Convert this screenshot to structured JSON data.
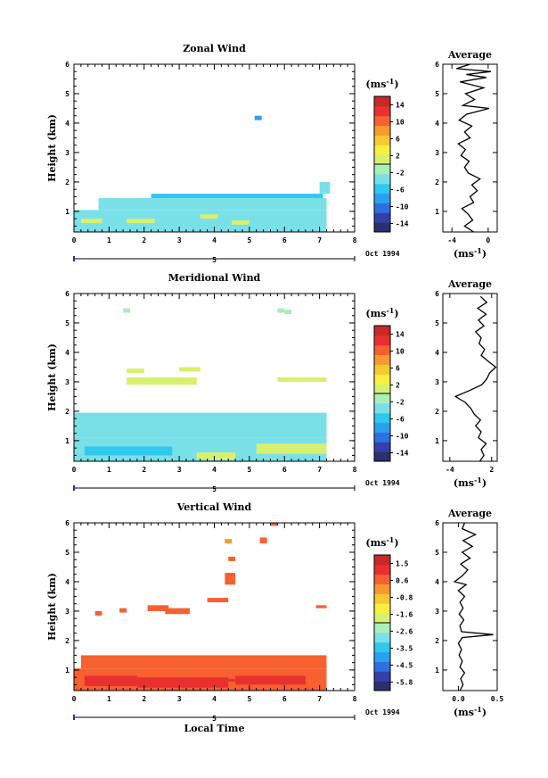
{
  "chart_data": [
    {
      "type": "heatmap",
      "title": "Zonal Wind",
      "ylabel": "Height (km)",
      "xlim": [
        0,
        8
      ],
      "ylim": [
        0.3,
        6
      ],
      "xticks": [
        "0",
        "1",
        "2",
        "3",
        "4",
        "5",
        "6",
        "7",
        "8"
      ],
      "yticks": [
        "1",
        "2",
        "3",
        "4",
        "5",
        "6"
      ],
      "date_label": "Oct 1994",
      "day_label": "5",
      "colorbar": {
        "unit_label": "(ms",
        "unit_exp": "-1",
        "unit_close": ")",
        "ticks": [
          "14",
          "10",
          "6",
          "2",
          "-2",
          "-6",
          "-10",
          "-14"
        ],
        "range": [
          -16,
          16
        ],
        "colors": [
          "#2a2f6e",
          "#3340a8",
          "#2f6fe0",
          "#2aa0f0",
          "#30c8ec",
          "#7ae0e8",
          "#a8f0b8",
          "#d8f070",
          "#f8f040",
          "#f8c830",
          "#f89830",
          "#f86030",
          "#e83030",
          "#c82828"
        ]
      },
      "regions": [
        {
          "x0": 0.0,
          "x1": 7.2,
          "y0": 0.3,
          "y1": 1.05,
          "value": -3
        },
        {
          "x0": 0.7,
          "x1": 7.2,
          "y0": 1.05,
          "y1": 1.45,
          "value": -4
        },
        {
          "x0": 2.2,
          "x1": 7.1,
          "y0": 1.45,
          "y1": 1.6,
          "value": -5
        },
        {
          "x0": 7.0,
          "x1": 7.3,
          "y0": 1.6,
          "y1": 2.0,
          "value": -4
        },
        {
          "x0": 5.15,
          "x1": 5.35,
          "y0": 4.1,
          "y1": 4.25,
          "value": -8
        },
        {
          "x0": 0.2,
          "x1": 0.8,
          "y0": 0.6,
          "y1": 0.75,
          "value": 1
        },
        {
          "x0": 1.5,
          "x1": 2.3,
          "y0": 0.6,
          "y1": 0.75,
          "value": 0
        },
        {
          "x0": 3.6,
          "x1": 4.1,
          "y0": 0.75,
          "y1": 0.9,
          "value": 0
        },
        {
          "x0": 4.5,
          "x1": 5.0,
          "y0": 0.55,
          "y1": 0.7,
          "value": 1
        }
      ],
      "average": {
        "title": "Average",
        "xlim": [
          -5,
          1
        ],
        "xticks": [
          "-4",
          "0"
        ],
        "xlabel_unit": "(ms",
        "xlabel_exp": "-1",
        "xlabel_close": ")",
        "profile": [
          [
            0.3,
            -1.6
          ],
          [
            0.5,
            -2.6
          ],
          [
            0.7,
            -1.7
          ],
          [
            0.9,
            -2.2
          ],
          [
            1.1,
            -2.9
          ],
          [
            1.3,
            -1.6
          ],
          [
            1.5,
            -2.0
          ],
          [
            1.7,
            -1.2
          ],
          [
            1.9,
            -1.8
          ],
          [
            2.1,
            -0.9
          ],
          [
            2.3,
            -2.2
          ],
          [
            2.5,
            -2.6
          ],
          [
            2.7,
            -2.1
          ],
          [
            2.9,
            -3.0
          ],
          [
            3.1,
            -2.5
          ],
          [
            3.3,
            -3.3
          ],
          [
            3.5,
            -2.0
          ],
          [
            3.7,
            -2.6
          ],
          [
            3.9,
            -1.8
          ],
          [
            4.1,
            -3.2
          ],
          [
            4.3,
            -2.4
          ],
          [
            4.5,
            0.1
          ],
          [
            4.6,
            -2.8
          ],
          [
            4.8,
            -1.5
          ],
          [
            5.0,
            -2.5
          ],
          [
            5.2,
            -0.5
          ],
          [
            5.4,
            -3.1
          ],
          [
            5.55,
            -0.2
          ],
          [
            5.65,
            -2.4
          ],
          [
            5.75,
            0.3
          ],
          [
            5.85,
            -3.5
          ],
          [
            6.0,
            -2.0
          ]
        ]
      }
    },
    {
      "type": "heatmap",
      "title": "Meridional Wind",
      "ylabel": "Height (km)",
      "xlim": [
        0,
        8
      ],
      "ylim": [
        0.3,
        6
      ],
      "xticks": [
        "0",
        "1",
        "2",
        "3",
        "4",
        "5",
        "6",
        "7",
        "8"
      ],
      "yticks": [
        "1",
        "2",
        "3",
        "4",
        "5",
        "6"
      ],
      "date_label": "Oct 1994",
      "day_label": "5",
      "colorbar": {
        "unit_label": "(ms",
        "unit_exp": "-1",
        "unit_close": ")",
        "ticks": [
          "14",
          "10",
          "6",
          "2",
          "-2",
          "-6",
          "-10",
          "-14"
        ],
        "range": [
          -16,
          16
        ],
        "colors": [
          "#2a2f6e",
          "#3340a8",
          "#2f6fe0",
          "#2aa0f0",
          "#30c8ec",
          "#7ae0e8",
          "#a8f0b8",
          "#d8f070",
          "#f8f040",
          "#f8c830",
          "#f89830",
          "#f86030",
          "#e83030",
          "#c82828"
        ]
      },
      "regions": [
        {
          "x0": 0.0,
          "x1": 7.2,
          "y0": 0.3,
          "y1": 1.1,
          "value": -3
        },
        {
          "x0": 0.0,
          "x1": 7.2,
          "y0": 1.1,
          "y1": 1.95,
          "value": -4
        },
        {
          "x0": 0.3,
          "x1": 2.8,
          "y0": 0.5,
          "y1": 0.8,
          "value": -6
        },
        {
          "x0": 5.2,
          "x1": 7.2,
          "y0": 0.55,
          "y1": 0.9,
          "value": 1
        },
        {
          "x0": 3.5,
          "x1": 4.6,
          "y0": 0.35,
          "y1": 0.6,
          "value": 0
        },
        {
          "x0": 1.5,
          "x1": 3.5,
          "y0": 2.9,
          "y1": 3.15,
          "value": 0
        },
        {
          "x0": 1.5,
          "x1": 2.0,
          "y0": 3.3,
          "y1": 3.45,
          "value": 1
        },
        {
          "x0": 3.0,
          "x1": 3.6,
          "y0": 3.35,
          "y1": 3.5,
          "value": 1
        },
        {
          "x0": 5.8,
          "x1": 7.2,
          "y0": 3.0,
          "y1": 3.15,
          "value": 0
        },
        {
          "x0": 1.4,
          "x1": 1.6,
          "y0": 5.35,
          "y1": 5.5,
          "value": -1
        },
        {
          "x0": 5.8,
          "x1": 6.0,
          "y0": 5.35,
          "y1": 5.5,
          "value": -1
        },
        {
          "x0": 6.0,
          "x1": 6.2,
          "y0": 5.3,
          "y1": 5.45,
          "value": -2
        }
      ],
      "average": {
        "title": "Average",
        "xlim": [
          -5,
          2.8
        ],
        "xticks": [
          "-4",
          "2"
        ],
        "xlabel_unit": "(ms",
        "xlabel_exp": "-1",
        "xlabel_close": ")",
        "profile": [
          [
            0.3,
            0.3
          ],
          [
            0.5,
            0.9
          ],
          [
            0.7,
            0.5
          ],
          [
            0.9,
            1.2
          ],
          [
            1.1,
            0.1
          ],
          [
            1.3,
            0.5
          ],
          [
            1.5,
            -0.3
          ],
          [
            1.7,
            0.4
          ],
          [
            1.9,
            -0.5
          ],
          [
            2.1,
            -1.0
          ],
          [
            2.3,
            -1.8
          ],
          [
            2.5,
            -3.2
          ],
          [
            2.7,
            -1.2
          ],
          [
            2.9,
            0.6
          ],
          [
            3.1,
            1.3
          ],
          [
            3.3,
            1.7
          ],
          [
            3.5,
            2.6
          ],
          [
            3.7,
            1.5
          ],
          [
            3.9,
            0.5
          ],
          [
            4.1,
            1.0
          ],
          [
            4.3,
            0.2
          ],
          [
            4.5,
            0.5
          ],
          [
            4.7,
            -0.3
          ],
          [
            4.9,
            0.9
          ],
          [
            5.1,
            0.1
          ],
          [
            5.3,
            1.2
          ],
          [
            5.5,
            0.0
          ],
          [
            5.7,
            1.3
          ],
          [
            5.9,
            0.4
          ]
        ]
      }
    },
    {
      "type": "heatmap",
      "title": "Vertical Wind",
      "ylabel": "Height (km)",
      "xlabel": "Local Time",
      "xlim": [
        0,
        8
      ],
      "ylim": [
        0.3,
        6
      ],
      "xticks": [
        "0",
        "1",
        "2",
        "3",
        "4",
        "5",
        "6",
        "7",
        "8"
      ],
      "yticks": [
        "1",
        "2",
        "3",
        "4",
        "5",
        "6"
      ],
      "date_label": "Oct 1994",
      "day_label": "5",
      "colorbar": {
        "unit_label": "(ms",
        "unit_exp": "-1",
        "unit_close": ")",
        "ticks": [
          "1.5",
          "0.6",
          "-0.8",
          "-1.6",
          "-2.6",
          "-3.5",
          "-4.5",
          "-5.8"
        ],
        "range": [
          -6.5,
          2.0
        ],
        "colors": [
          "#2a2f6e",
          "#3340a8",
          "#2f6fe0",
          "#2aa0f0",
          "#30c8ec",
          "#7ae0e8",
          "#a8f0b8",
          "#d8f070",
          "#f8f040",
          "#f8c830",
          "#f89830",
          "#f86030",
          "#e83030",
          "#c82828"
        ]
      },
      "regions": [
        {
          "x0": 0.0,
          "x1": 7.2,
          "y0": 0.3,
          "y1": 1.05,
          "value": 0.5
        },
        {
          "x0": 0.2,
          "x1": 7.2,
          "y0": 1.05,
          "y1": 1.5,
          "value": 0.2
        },
        {
          "x0": 0.3,
          "x1": 1.8,
          "y0": 0.45,
          "y1": 0.8,
          "value": 0.9
        },
        {
          "x0": 1.8,
          "x1": 4.4,
          "y0": 0.4,
          "y1": 0.75,
          "value": 0.9
        },
        {
          "x0": 4.6,
          "x1": 6.6,
          "y0": 0.5,
          "y1": 0.8,
          "value": 0.8
        },
        {
          "x0": 2.0,
          "x1": 2.6,
          "y0": 0.55,
          "y1": 0.65,
          "value": 1.3
        },
        {
          "x0": 4.2,
          "x1": 4.6,
          "y0": 0.6,
          "y1": 0.7,
          "value": 1.3
        },
        {
          "x0": 2.1,
          "x1": 2.7,
          "y0": 3.0,
          "y1": 3.2,
          "value": 0.2
        },
        {
          "x0": 2.6,
          "x1": 3.3,
          "y0": 2.9,
          "y1": 3.1,
          "value": 0.3
        },
        {
          "x0": 3.8,
          "x1": 4.4,
          "y0": 3.3,
          "y1": 3.45,
          "value": 0.2
        },
        {
          "x0": 4.3,
          "x1": 4.6,
          "y0": 3.9,
          "y1": 4.3,
          "value": 0.2
        },
        {
          "x0": 4.4,
          "x1": 4.6,
          "y0": 4.7,
          "y1": 4.85,
          "value": 0.2
        },
        {
          "x0": 4.3,
          "x1": 4.5,
          "y0": 5.3,
          "y1": 5.45,
          "value": 0.1
        },
        {
          "x0": 5.3,
          "x1": 5.5,
          "y0": 5.3,
          "y1": 5.5,
          "value": 0.7
        },
        {
          "x0": 5.6,
          "x1": 5.8,
          "y0": 5.9,
          "y1": 6.0,
          "value": 0.3
        },
        {
          "x0": 0.6,
          "x1": 0.8,
          "y0": 2.85,
          "y1": 3.0,
          "value": 0.2
        },
        {
          "x0": 1.3,
          "x1": 1.5,
          "y0": 2.95,
          "y1": 3.1,
          "value": 0.2
        },
        {
          "x0": 6.9,
          "x1": 7.2,
          "y0": 3.1,
          "y1": 3.2,
          "value": 0.2
        }
      ],
      "average": {
        "title": "Average",
        "xlim": [
          -0.2,
          0.5
        ],
        "xticks": [
          "0.0",
          "0.5"
        ],
        "xlabel_unit": "(ms",
        "xlabel_exp": "-1",
        "xlabel_close": ")",
        "profile": [
          [
            0.3,
            0.02
          ],
          [
            0.5,
            0.06
          ],
          [
            0.7,
            0.03
          ],
          [
            0.9,
            0.08
          ],
          [
            1.1,
            0.02
          ],
          [
            1.3,
            0.05
          ],
          [
            1.5,
            0.01
          ],
          [
            1.7,
            0.04
          ],
          [
            1.9,
            0.0
          ],
          [
            2.1,
            0.05
          ],
          [
            2.2,
            0.45
          ],
          [
            2.3,
            0.04
          ],
          [
            2.5,
            0.02
          ],
          [
            2.7,
            0.07
          ],
          [
            2.9,
            0.01
          ],
          [
            3.1,
            0.06
          ],
          [
            3.3,
            0.02
          ],
          [
            3.5,
            0.08
          ],
          [
            3.7,
            0.0
          ],
          [
            3.9,
            0.1
          ],
          [
            4.0,
            -0.05
          ],
          [
            4.2,
            0.05
          ],
          [
            4.4,
            0.12
          ],
          [
            4.6,
            0.03
          ],
          [
            4.8,
            0.15
          ],
          [
            5.0,
            0.05
          ],
          [
            5.2,
            0.18
          ],
          [
            5.4,
            0.06
          ],
          [
            5.6,
            0.22
          ],
          [
            5.8,
            0.05
          ],
          [
            6.0,
            0.08
          ]
        ]
      }
    }
  ]
}
